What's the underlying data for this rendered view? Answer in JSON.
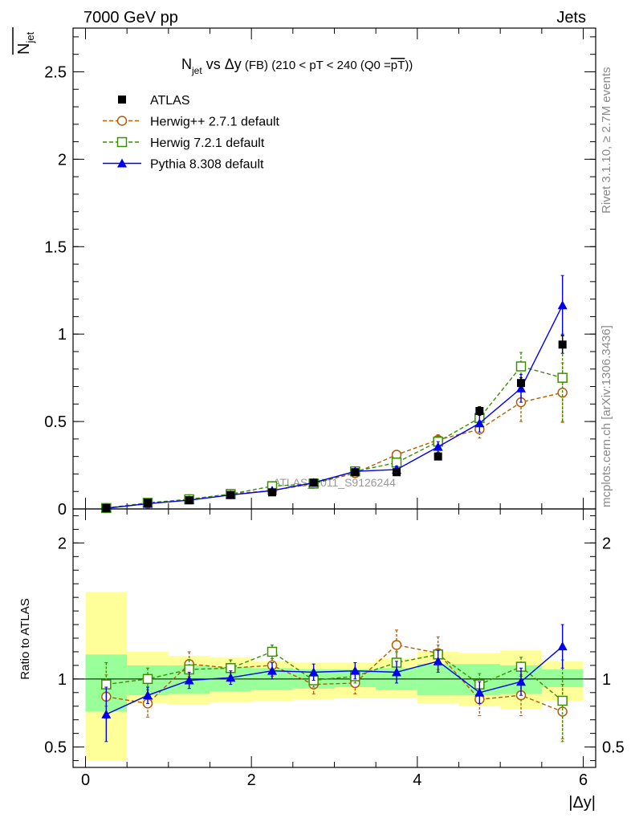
{
  "header": {
    "left": "7000 GeV pp",
    "right": "Jets"
  },
  "side_text": {
    "rivet": "Rivet 3.1.10, ≥ 2.7M events",
    "mcplots": "mcplots.cern.ch [arXiv:1306.3436]"
  },
  "watermark": "ATLAS_2011_S9126244",
  "chart_data": [
    {
      "type": "scatter",
      "title": "N_jet vs Δy (FB) (210 < pT < 240 (Q0 = pT̅))",
      "title_parts": {
        "n": "N",
        "jet": "jet",
        "vs": " vs Δy",
        "fb": " (FB) (210 < pT < 240 (Q0 =",
        "pt": "pT",
        "close": "))"
      },
      "ylabel": "N̅_jet",
      "ylabel_parts": {
        "n": "N",
        "jet": "jet"
      },
      "xlabel": "|Δy|",
      "xlim": [
        -0.15,
        6.15
      ],
      "ylim": [
        0,
        2.75
      ],
      "y_ticks": [
        {
          "value": 0,
          "label": "0"
        },
        {
          "value": 0.5,
          "label": "0.5"
        },
        {
          "value": 1,
          "label": "1"
        },
        {
          "value": 1.5,
          "label": "1.5"
        },
        {
          "value": 2,
          "label": "2"
        },
        {
          "value": 2.5,
          "label": "2.5"
        }
      ],
      "x": [
        0.25,
        0.75,
        1.25,
        1.75,
        2.25,
        2.75,
        3.25,
        3.75,
        4.25,
        4.75,
        5.25,
        5.75
      ],
      "bin_edges": [
        0,
        0.5,
        1,
        1.5,
        2,
        2.5,
        3,
        3.5,
        4,
        4.5,
        5,
        5.5,
        6
      ],
      "series": [
        {
          "name": "ATLAS",
          "marker": "filled-square",
          "color": "#000000",
          "dash": "",
          "values": [
            0.005,
            0.035,
            0.05,
            0.08,
            0.095,
            0.15,
            0.21,
            0.21,
            0.3,
            0.56,
            0.72,
            0.94
          ],
          "errors": [
            0.002,
            0.004,
            0.005,
            0.007,
            0.008,
            0.01,
            0.012,
            0.014,
            0.02,
            0.025,
            0.03,
            0.05
          ]
        },
        {
          "name": "Herwig++ 2.7.1 default",
          "marker": "open-circle",
          "color": "#b35c00",
          "dash": "5,3",
          "values": [
            0.005,
            0.03,
            0.055,
            0.085,
            0.105,
            0.145,
            0.205,
            0.31,
            0.395,
            0.455,
            0.61,
            0.665
          ],
          "errors": [
            0.002,
            0.004,
            0.006,
            0.008,
            0.01,
            0.012,
            0.015,
            0.02,
            0.03,
            0.05,
            0.11,
            0.17
          ]
        },
        {
          "name": "Herwig 7.2.1 default",
          "marker": "open-square",
          "color": "#3b8f00",
          "dash": "5,3",
          "values": [
            0.005,
            0.035,
            0.055,
            0.085,
            0.13,
            0.145,
            0.215,
            0.265,
            0.385,
            0.52,
            0.815,
            0.75
          ],
          "errors": [
            0.002,
            0.004,
            0.006,
            0.008,
            0.01,
            0.012,
            0.015,
            0.02,
            0.03,
            0.05,
            0.08,
            0.25
          ]
        },
        {
          "name": "Pythia 8.308 default",
          "marker": "filled-triangle",
          "color": "#0000ee",
          "dash": "",
          "values": [
            0.004,
            0.03,
            0.05,
            0.08,
            0.105,
            0.15,
            0.215,
            0.225,
            0.355,
            0.49,
            0.69,
            1.165
          ],
          "errors": [
            0.002,
            0.004,
            0.006,
            0.008,
            0.01,
            0.012,
            0.015,
            0.02,
            0.03,
            0.05,
            0.08,
            0.17
          ]
        }
      ],
      "legend_position": "top-left"
    },
    {
      "type": "scatter",
      "ylabel": "Ratio to ATLAS",
      "xlabel": "|Δy|",
      "xlim": [
        -0.15,
        6.15
      ],
      "ylim": [
        0.35,
        2.25
      ],
      "y_ticks": [
        {
          "value": 0.5,
          "label": "0.5"
        },
        {
          "value": 1,
          "label": "1"
        },
        {
          "value": 2,
          "label": "2"
        }
      ],
      "x_ticks": [
        {
          "value": 0,
          "label": "0"
        },
        {
          "value": 2,
          "label": "2"
        },
        {
          "value": 4,
          "label": "4"
        },
        {
          "value": 6,
          "label": "6"
        }
      ],
      "x": [
        0.25,
        0.75,
        1.25,
        1.75,
        2.25,
        2.75,
        3.25,
        3.75,
        4.25,
        4.75,
        5.25,
        5.75
      ],
      "bin_edges": [
        0,
        0.5,
        1,
        1.5,
        2,
        2.5,
        3,
        3.5,
        4,
        4.5,
        5,
        5.5,
        6
      ],
      "bands": {
        "yellow": {
          "color": "#ffff99",
          "low": [
            0.4,
            0.82,
            0.81,
            0.83,
            0.84,
            0.85,
            0.86,
            0.86,
            0.82,
            0.8,
            0.78,
            0.84
          ],
          "high": [
            1.64,
            1.2,
            1.17,
            1.16,
            1.13,
            1.12,
            1.12,
            1.15,
            1.2,
            1.19,
            1.21,
            1.13
          ]
        },
        "green": {
          "color": "#99ff99",
          "low": [
            0.76,
            0.88,
            0.89,
            0.91,
            0.92,
            0.93,
            0.94,
            0.92,
            0.88,
            0.88,
            0.89,
            0.94
          ],
          "high": [
            1.18,
            1.1,
            1.1,
            1.09,
            1.08,
            1.07,
            1.07,
            1.08,
            1.11,
            1.11,
            1.1,
            1.07
          ]
        }
      },
      "series": [
        {
          "name": "Herwig++ 2.7.1 default",
          "values": [
            0.87,
            0.82,
            1.11,
            1.08,
            1.1,
            0.96,
            0.97,
            1.25,
            1.19,
            0.85,
            0.88,
            0.76
          ],
          "errors": [
            0.16,
            0.1,
            0.09,
            0.06,
            0.08,
            0.07,
            0.08,
            0.11,
            0.12,
            0.12,
            0.15,
            0.2
          ]
        },
        {
          "name": "Herwig 7.2.1 default",
          "values": [
            0.96,
            1.0,
            1.07,
            1.08,
            1.2,
            0.99,
            1.02,
            1.12,
            1.18,
            0.96,
            1.09,
            0.84
          ],
          "errors": [
            0.16,
            0.08,
            0.07,
            0.06,
            0.05,
            0.05,
            0.05,
            0.08,
            0.07,
            0.08,
            0.07,
            0.3
          ]
        },
        {
          "name": "Pythia 8.308 default",
          "values": [
            0.74,
            0.88,
            0.99,
            1.01,
            1.06,
            1.05,
            1.06,
            1.05,
            1.13,
            0.9,
            0.98,
            1.24
          ],
          "errors": [
            0.2,
            0.06,
            0.06,
            0.05,
            0.06,
            0.06,
            0.06,
            0.08,
            0.08,
            0.08,
            0.1,
            0.16
          ]
        }
      ]
    }
  ]
}
